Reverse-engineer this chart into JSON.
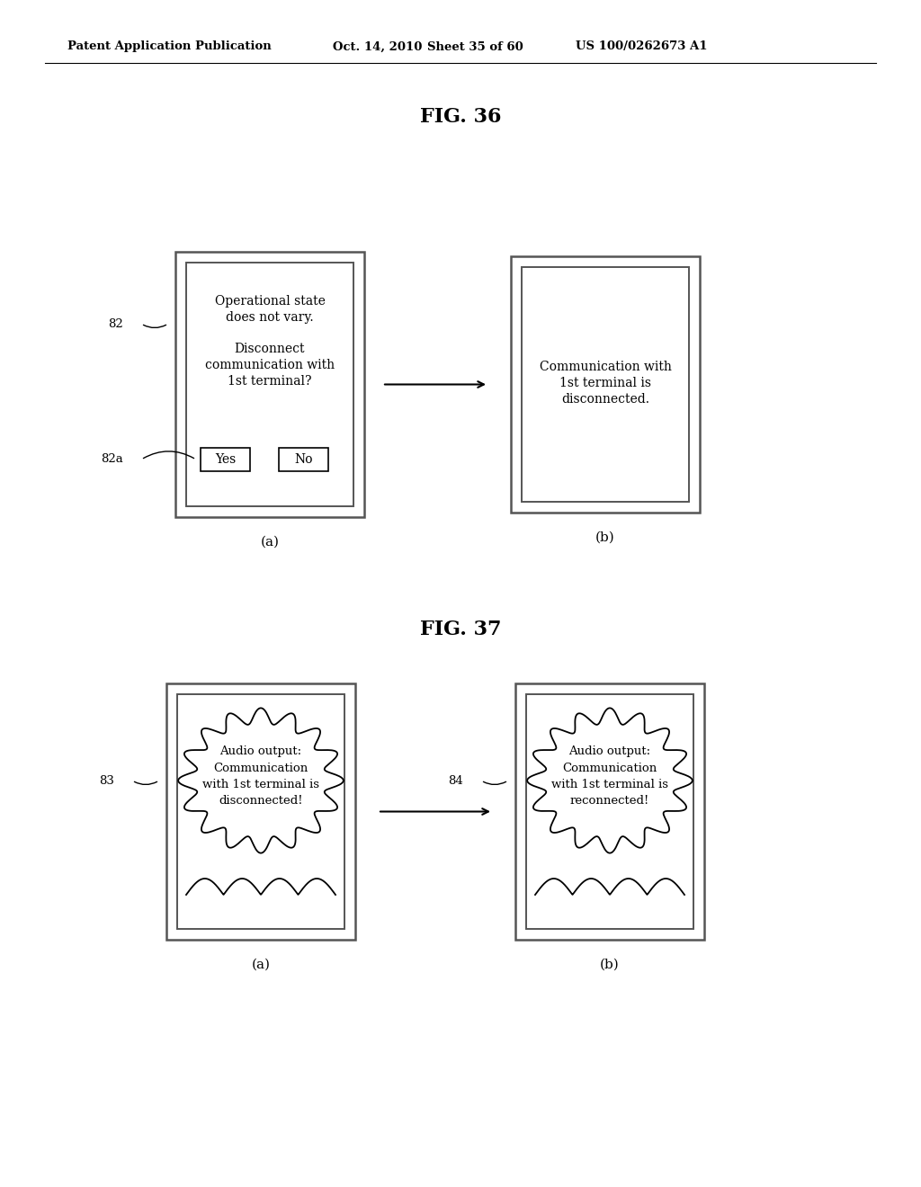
{
  "bg_color": "#ffffff",
  "header_text": "Patent Application Publication",
  "header_date": "Oct. 14, 2010",
  "header_sheet": "Sheet 35 of 60",
  "header_patent": "US 100/0262673 A1",
  "fig36_title": "FIG. 36",
  "fig37_title": "FIG. 37",
  "fig36a_label": "(a)",
  "fig36b_label": "(b)",
  "fig37a_label": "(a)",
  "fig37b_label": "(b)",
  "label_82": "82",
  "label_82a": "82a",
  "label_83": "83",
  "label_84": "84",
  "fig36a_text1": "Operational state",
  "fig36a_text2": "does not vary.",
  "fig36a_text3": "Disconnect",
  "fig36a_text4": "communication with",
  "fig36a_text5": "1st terminal?",
  "fig36a_yes": "Yes",
  "fig36a_no": "No",
  "fig36b_text1": "Communication with",
  "fig36b_text2": "1st terminal is",
  "fig36b_text3": "disconnected.",
  "fig37a_text1": "Audio output:",
  "fig37a_text2": "Communication",
  "fig37a_text3": "with 1st terminal is",
  "fig37a_text4": "disconnected!",
  "fig37b_text1": "Audio output:",
  "fig37b_text2": "Communication",
  "fig37b_text3": "with 1st terminal is",
  "fig37b_text4": "reconnected!"
}
